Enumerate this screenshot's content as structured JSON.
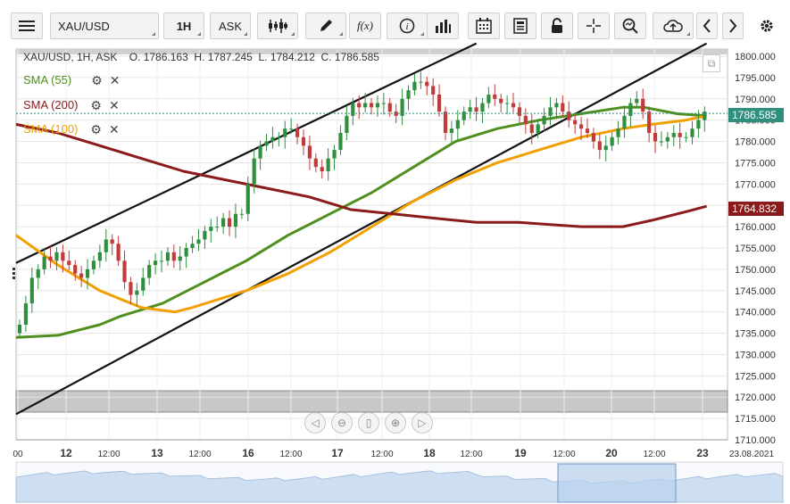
{
  "toolbar": {
    "symbol": "XAU/USD",
    "timeframe": "1H",
    "price_side": "ASK",
    "icons": [
      "menu-icon",
      "candles-icon",
      "pencil-icon",
      "function-icon",
      "info-icon",
      "bars-icon",
      "calendar-icon",
      "notes-icon",
      "lock-icon",
      "crosshair-icon",
      "zoom-icon",
      "cloud-upload-icon",
      "prev-icon",
      "next-icon",
      "gear-icon"
    ],
    "function_label": "f(x)"
  },
  "header": {
    "ohlc": "XAU/USD, 1H, ASK    O. 1786.163  H. 1787.245  L. 1784.212  C. 1786.585"
  },
  "indicators": [
    {
      "label": "SMA (55)",
      "color": "#4f8f1f"
    },
    {
      "label": "SMA (200)",
      "color": "#8b1a1a"
    },
    {
      "label": "SMA (100)",
      "color": "#f0a000"
    }
  ],
  "price_tags": {
    "last": "1786.585",
    "sma200": "1764.832",
    "last_color": "#2f8f7f",
    "sma200_color": "#8b1a1a"
  },
  "navigator_icons": [
    "left-arrow-icon",
    "zoom-out-icon",
    "reset-icon",
    "zoom-in-icon",
    "right-arrow-icon"
  ],
  "chart_data": {
    "type": "line",
    "title": "",
    "ylim": [
      1710,
      1800
    ],
    "y_ticks": [
      1800,
      1795,
      1790,
      1785,
      1780,
      1775,
      1770,
      1765,
      1760,
      1755,
      1750,
      1745,
      1740,
      1735,
      1730,
      1725,
      1720,
      1715,
      1710
    ],
    "x_ticks": [
      "00",
      "12",
      "12:00",
      "13",
      "12:00",
      "16",
      "12:00",
      "17",
      "12:00",
      "18",
      "12:00",
      "19",
      "12:00",
      "20",
      "12:00",
      "23",
      "23.08.2021"
    ],
    "x_range_hours": [
      0,
      170
    ],
    "grid": true,
    "candles_close": [
      1737,
      1742,
      1748,
      1750,
      1753,
      1752,
      1754,
      1752,
      1751,
      1749,
      1748,
      1750,
      1752,
      1754,
      1757,
      1756,
      1752,
      1747,
      1744,
      1745,
      1748,
      1751,
      1752,
      1752,
      1754,
      1752,
      1753,
      1755,
      1756,
      1757,
      1759,
      1760,
      1760,
      1762,
      1760,
      1763,
      1763,
      1770,
      1776,
      1779,
      1780,
      1781,
      1781,
      1783,
      1783,
      1781,
      1779,
      1776,
      1774,
      1773,
      1776,
      1778,
      1782,
      1786,
      1789,
      1788,
      1789,
      1788,
      1789,
      1789,
      1787,
      1786,
      1790,
      1792,
      1794,
      1794,
      1793,
      1791,
      1787,
      1782,
      1783,
      1785,
      1787,
      1788,
      1787,
      1789,
      1791,
      1790,
      1789,
      1789,
      1788,
      1786,
      1784,
      1782,
      1784,
      1786,
      1788,
      1789,
      1787,
      1785,
      1784,
      1783,
      1782,
      1780,
      1778,
      1779,
      1781,
      1783,
      1786,
      1789,
      1790,
      1787,
      1782,
      1780,
      1780,
      1781,
      1782,
      1781,
      1781,
      1783,
      1785,
      1787
    ],
    "series": [
      {
        "name": "SMA (55)",
        "color": "#4f8f1f",
        "points": [
          [
            0,
            1734
          ],
          [
            10,
            1734.5
          ],
          [
            20,
            1737
          ],
          [
            25,
            1739
          ],
          [
            35,
            1742
          ],
          [
            45,
            1747
          ],
          [
            55,
            1752
          ],
          [
            65,
            1758
          ],
          [
            75,
            1763
          ],
          [
            85,
            1768
          ],
          [
            95,
            1774
          ],
          [
            105,
            1780
          ],
          [
            115,
            1783
          ],
          [
            125,
            1785
          ],
          [
            135,
            1786.5
          ],
          [
            145,
            1788
          ],
          [
            150,
            1788
          ],
          [
            158,
            1786.5
          ],
          [
            165,
            1786
          ]
        ]
      },
      {
        "name": "SMA (100)",
        "color": "#f0a000",
        "points": [
          [
            0,
            1758
          ],
          [
            10,
            1751
          ],
          [
            20,
            1745
          ],
          [
            30,
            1741
          ],
          [
            38,
            1740
          ],
          [
            42,
            1741
          ],
          [
            55,
            1745
          ],
          [
            65,
            1749
          ],
          [
            75,
            1754
          ],
          [
            85,
            1760
          ],
          [
            95,
            1766
          ],
          [
            105,
            1771
          ],
          [
            115,
            1775
          ],
          [
            125,
            1778
          ],
          [
            135,
            1781
          ],
          [
            145,
            1783
          ],
          [
            152,
            1784
          ],
          [
            160,
            1785
          ],
          [
            165,
            1786
          ]
        ]
      },
      {
        "name": "SMA (200)",
        "color": "#8b1a1a",
        "points": [
          [
            0,
            1784
          ],
          [
            10,
            1782
          ],
          [
            20,
            1779
          ],
          [
            30,
            1776
          ],
          [
            40,
            1773
          ],
          [
            50,
            1771
          ],
          [
            60,
            1769
          ],
          [
            70,
            1767
          ],
          [
            80,
            1764
          ],
          [
            90,
            1763
          ],
          [
            100,
            1762
          ],
          [
            110,
            1761
          ],
          [
            120,
            1761
          ],
          [
            135,
            1760
          ],
          [
            145,
            1760
          ],
          [
            152,
            1761.5
          ],
          [
            160,
            1763.5
          ],
          [
            165,
            1764.8
          ]
        ]
      }
    ],
    "channel_lines": [
      {
        "start": [
          0,
          1751.5
        ],
        "end": [
          110,
          1803
        ]
      },
      {
        "start": [
          0,
          1716
        ],
        "end": [
          165,
          1803
        ]
      }
    ],
    "last_price": 1786.585
  }
}
